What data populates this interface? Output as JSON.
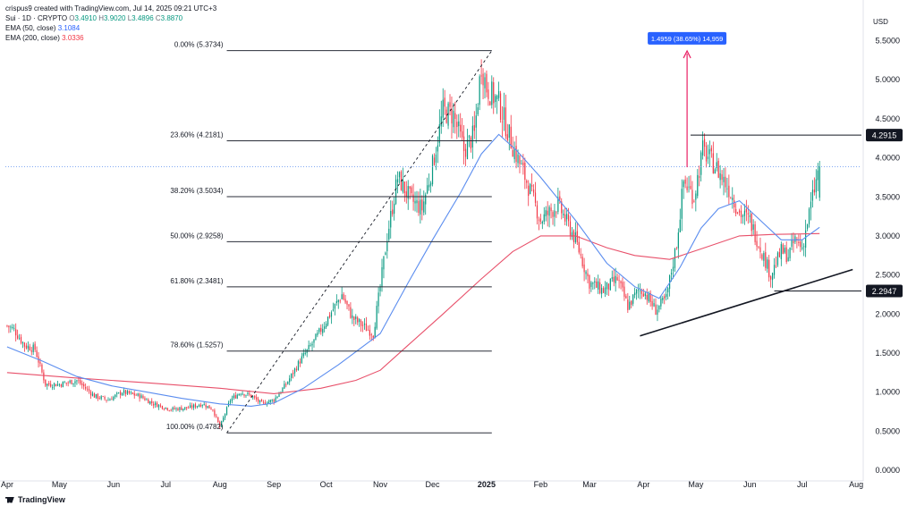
{
  "header": {
    "author_line": "crispus9 created with TradingView.com, Jul 14, 2025 09:21 UTC+3",
    "symbol": "Sui · 1D · CRYPTO",
    "ohlc": {
      "o_label": "O",
      "o": "3.4910",
      "h_label": "H",
      "h": "3.9020",
      "l_label": "L",
      "l": "3.4896",
      "c_label": "C",
      "c": "3.8870"
    },
    "ema50_label": "EMA (50, close)",
    "ema50_value": "3.1084",
    "ema200_label": "EMA (200, close)",
    "ema200_value": "3.0336"
  },
  "branding": {
    "name": "TradingView"
  },
  "colors": {
    "up": "#089981",
    "down": "#f23645",
    "ema50": "#5b8def",
    "ema200": "#e8506a",
    "fib": "#2a2e39",
    "accent": "#2962ff",
    "measure": "#e91e63"
  },
  "chart_data": {
    "type": "candlestick",
    "title": "Sui · 1D · CRYPTO",
    "currency_label": "USD",
    "y_range": [
      0,
      5.85
    ],
    "y_ticks": [
      "0.0000",
      "0.5000",
      "1.0000",
      "1.5000",
      "2.0000",
      "2.5000",
      "3.0000",
      "3.5000",
      "4.0000",
      "4.5000",
      "5.0000",
      "5.5000"
    ],
    "x_labels": [
      {
        "label": "Apr",
        "t": 0
      },
      {
        "label": "May",
        "t": 30
      },
      {
        "label": "Jun",
        "t": 61
      },
      {
        "label": "Jul",
        "t": 91
      },
      {
        "label": "Aug",
        "t": 122
      },
      {
        "label": "Sep",
        "t": 153
      },
      {
        "label": "Oct",
        "t": 183
      },
      {
        "label": "Nov",
        "t": 214
      },
      {
        "label": "Dec",
        "t": 244
      },
      {
        "label": "2025",
        "t": 275,
        "bold": true
      },
      {
        "label": "Feb",
        "t": 306
      },
      {
        "label": "Mar",
        "t": 334
      },
      {
        "label": "Apr",
        "t": 365
      },
      {
        "label": "May",
        "t": 395
      },
      {
        "label": "Jun",
        "t": 426
      },
      {
        "label": "Jul",
        "t": 456
      },
      {
        "label": "Aug",
        "t": 487
      }
    ],
    "price_path": [
      [
        0,
        1.85
      ],
      [
        4,
        1.8
      ],
      [
        10,
        1.6
      ],
      [
        16,
        1.55
      ],
      [
        22,
        1.1
      ],
      [
        30,
        1.1
      ],
      [
        40,
        1.15
      ],
      [
        50,
        0.95
      ],
      [
        58,
        0.9
      ],
      [
        66,
        1.0
      ],
      [
        76,
        0.95
      ],
      [
        84,
        0.85
      ],
      [
        94,
        0.78
      ],
      [
        104,
        0.8
      ],
      [
        112,
        0.85
      ],
      [
        118,
        0.78
      ],
      [
        122,
        0.55
      ],
      [
        128,
        0.9
      ],
      [
        134,
        1.0
      ],
      [
        140,
        0.95
      ],
      [
        146,
        0.85
      ],
      [
        153,
        0.9
      ],
      [
        160,
        1.1
      ],
      [
        168,
        1.4
      ],
      [
        176,
        1.65
      ],
      [
        184,
        1.95
      ],
      [
        192,
        2.25
      ],
      [
        198,
        1.95
      ],
      [
        204,
        1.85
      ],
      [
        210,
        1.75
      ],
      [
        214,
        2.35
      ],
      [
        218,
        3.0
      ],
      [
        224,
        3.75
      ],
      [
        232,
        3.45
      ],
      [
        238,
        3.35
      ],
      [
        244,
        3.9
      ],
      [
        250,
        4.6
      ],
      [
        256,
        4.55
      ],
      [
        262,
        4.1
      ],
      [
        268,
        4.3
      ],
      [
        272,
        5.2
      ],
      [
        275,
        4.9
      ],
      [
        282,
        4.7
      ],
      [
        290,
        4.15
      ],
      [
        298,
        3.7
      ],
      [
        306,
        3.2
      ],
      [
        316,
        3.4
      ],
      [
        326,
        2.95
      ],
      [
        334,
        2.4
      ],
      [
        342,
        2.3
      ],
      [
        350,
        2.45
      ],
      [
        356,
        2.1
      ],
      [
        362,
        2.3
      ],
      [
        365,
        2.3
      ],
      [
        372,
        2.05
      ],
      [
        378,
        2.2
      ],
      [
        384,
        2.9
      ],
      [
        388,
        3.7
      ],
      [
        394,
        3.5
      ],
      [
        399,
        4.1
      ],
      [
        406,
        3.9
      ],
      [
        414,
        3.6
      ],
      [
        420,
        3.3
      ],
      [
        426,
        3.2
      ],
      [
        432,
        2.85
      ],
      [
        438,
        2.5
      ],
      [
        444,
        2.8
      ],
      [
        448,
        2.75
      ],
      [
        452,
        2.95
      ],
      [
        456,
        2.85
      ],
      [
        462,
        3.5
      ],
      [
        466,
        3.89
      ]
    ],
    "ema50_path": [
      [
        0,
        1.58
      ],
      [
        20,
        1.4
      ],
      [
        40,
        1.2
      ],
      [
        60,
        1.08
      ],
      [
        80,
        1.0
      ],
      [
        100,
        0.92
      ],
      [
        122,
        0.85
      ],
      [
        140,
        0.82
      ],
      [
        153,
        0.86
      ],
      [
        170,
        1.05
      ],
      [
        190,
        1.35
      ],
      [
        214,
        1.75
      ],
      [
        230,
        2.4
      ],
      [
        244,
        2.95
      ],
      [
        260,
        3.55
      ],
      [
        272,
        4.05
      ],
      [
        282,
        4.3
      ],
      [
        292,
        4.1
      ],
      [
        306,
        3.75
      ],
      [
        326,
        3.2
      ],
      [
        344,
        2.65
      ],
      [
        360,
        2.35
      ],
      [
        374,
        2.2
      ],
      [
        386,
        2.6
      ],
      [
        398,
        3.1
      ],
      [
        408,
        3.35
      ],
      [
        420,
        3.45
      ],
      [
        432,
        3.2
      ],
      [
        444,
        2.95
      ],
      [
        456,
        2.95
      ],
      [
        466,
        3.11
      ]
    ],
    "ema200_path": [
      [
        0,
        1.25
      ],
      [
        40,
        1.18
      ],
      [
        80,
        1.12
      ],
      [
        122,
        1.05
      ],
      [
        153,
        0.98
      ],
      [
        180,
        1.05
      ],
      [
        200,
        1.15
      ],
      [
        214,
        1.28
      ],
      [
        230,
        1.6
      ],
      [
        250,
        2.0
      ],
      [
        272,
        2.45
      ],
      [
        290,
        2.8
      ],
      [
        306,
        3.0
      ],
      [
        326,
        3.0
      ],
      [
        344,
        2.85
      ],
      [
        360,
        2.75
      ],
      [
        380,
        2.7
      ],
      [
        400,
        2.85
      ],
      [
        420,
        3.0
      ],
      [
        440,
        3.02
      ],
      [
        466,
        3.03
      ]
    ],
    "fib_levels": [
      {
        "label": "0.00% (5.3734)",
        "price": 5.3734
      },
      {
        "label": "23.60% (4.2181)",
        "price": 4.2181
      },
      {
        "label": "38.20% (3.5034)",
        "price": 3.5034
      },
      {
        "label": "50.00% (2.9258)",
        "price": 2.9258
      },
      {
        "label": "61.80% (2.3481)",
        "price": 2.3481
      },
      {
        "label": "78.60% (1.5257)",
        "price": 1.5257
      },
      {
        "label": "100.00% (0.4782)",
        "price": 0.4782
      }
    ],
    "fib_range_t": [
      126,
      278
    ],
    "fib_trend": {
      "from": [
        126,
        0.4782
      ],
      "to": [
        278,
        5.3734
      ]
    },
    "resistance": {
      "price": 4.2915,
      "label": "4.2915",
      "from_t": 392
    },
    "support": {
      "price": 2.2947,
      "label": "2.2947",
      "from_t": 440
    },
    "trendline": {
      "from": [
        363,
        1.72
      ],
      "to": [
        485,
        2.57
      ]
    },
    "measure": {
      "t": 390,
      "from": 3.88,
      "to": 5.37,
      "label": "1.4959 (38.65%) 14,959"
    },
    "last_price": 3.887
  }
}
